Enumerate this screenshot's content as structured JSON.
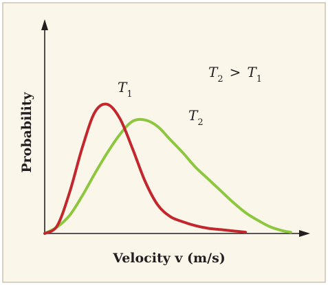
{
  "chart_data": {
    "type": "line",
    "title": "",
    "xlabel": "Velocity v (m/s)",
    "ylabel": "Probability",
    "annotation": {
      "lhs_base": "T",
      "lhs_sub": "2",
      "op": ">",
      "rhs_base": "T",
      "rhs_sub": "1"
    },
    "series": [
      {
        "name": "T1",
        "label_base": "T",
        "label_sub": "1",
        "color": "#c1272d",
        "x": [
          0,
          0.05,
          0.1,
          0.15,
          0.2,
          0.25,
          0.3,
          0.35,
          0.4,
          0.45,
          0.5,
          0.55,
          0.6,
          0.65,
          0.7,
          0.75,
          0.8
        ],
        "y": [
          0,
          0.06,
          0.32,
          0.66,
          0.93,
          0.99,
          0.88,
          0.65,
          0.4,
          0.22,
          0.13,
          0.09,
          0.06,
          0.04,
          0.03,
          0.02,
          0.01
        ]
      },
      {
        "name": "T2",
        "label_base": "T",
        "label_sub": "2",
        "color": "#8dc63f",
        "x": [
          0,
          0.05,
          0.1,
          0.15,
          0.2,
          0.25,
          0.3,
          0.35,
          0.4,
          0.45,
          0.5,
          0.55,
          0.6,
          0.65,
          0.7,
          0.75,
          0.8,
          0.85,
          0.9,
          0.95,
          0.98
        ],
        "y": [
          0,
          0.05,
          0.14,
          0.29,
          0.46,
          0.62,
          0.76,
          0.86,
          0.87,
          0.82,
          0.72,
          0.62,
          0.51,
          0.42,
          0.33,
          0.24,
          0.16,
          0.1,
          0.05,
          0.02,
          0.01
        ]
      }
    ],
    "xlim": [
      0,
      1
    ],
    "ylim": [
      0,
      1
    ],
    "ticks": "none",
    "grid": false,
    "legend": "none"
  },
  "colors": {
    "frame_background": "#fbf6ea",
    "frame_border": "#c9c3b3",
    "axis": "#231f20",
    "text": "#231f20"
  }
}
